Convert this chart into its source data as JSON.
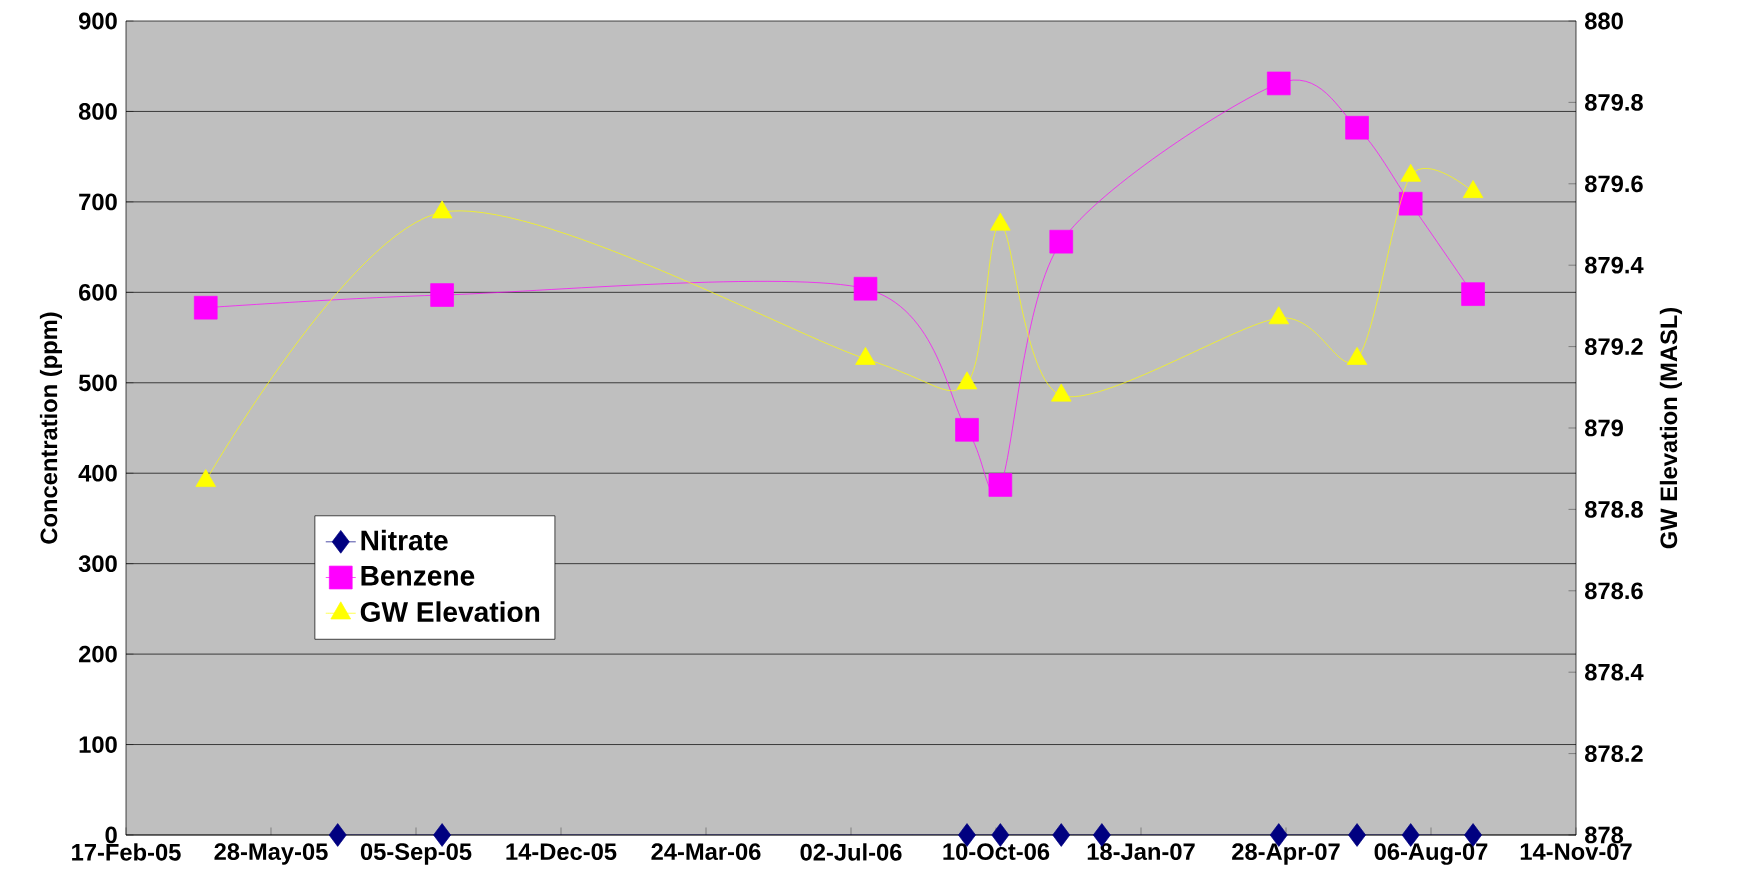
{
  "chart_data": {
    "type": "line",
    "ylabel": "Concentration (ppm)",
    "y2label": "GW Elevation (MASL)",
    "xlim": [
      "2005-02-17",
      "2007-11-14"
    ],
    "xticks": [
      {
        "value": "2005-02-17",
        "label": "17-Feb-05"
      },
      {
        "value": "2005-05-28",
        "label": "28-May-05"
      },
      {
        "value": "2005-09-05",
        "label": "05-Sep-05"
      },
      {
        "value": "2005-12-14",
        "label": "14-Dec-05"
      },
      {
        "value": "2006-03-24",
        "label": "24-Mar-06"
      },
      {
        "value": "2006-07-02",
        "label": "02-Jul-06"
      },
      {
        "value": "2006-10-10",
        "label": "10-Oct-06"
      },
      {
        "value": "2007-01-18",
        "label": "18-Jan-07"
      },
      {
        "value": "2007-04-28",
        "label": "28-Apr-07"
      },
      {
        "value": "2007-08-06",
        "label": "06-Aug-07"
      },
      {
        "value": "2007-11-14",
        "label": "14-Nov-07"
      }
    ],
    "ylim": [
      0,
      900
    ],
    "yticks": [
      0,
      100,
      200,
      300,
      400,
      500,
      600,
      700,
      800,
      900
    ],
    "y2lim": [
      878,
      880
    ],
    "y2ticks": [
      878,
      878.2,
      878.4,
      878.6,
      878.8,
      879,
      879.2,
      879.4,
      879.6,
      879.8,
      880
    ],
    "grid": "y",
    "legend": "left",
    "series": [
      {
        "name": "Nitrate",
        "color": "#000080",
        "marker": "diamond",
        "x": [
          "2005-07-13",
          "2005-09-23",
          "2006-09-20",
          "2006-10-13",
          "2006-11-24",
          "2006-12-22",
          "2007-04-23",
          "2007-06-16",
          "2007-07-23",
          "2007-09-04"
        ],
        "values": [
          0,
          0,
          0,
          0,
          0,
          0,
          0,
          0,
          0,
          0
        ]
      },
      {
        "name": "Benzene",
        "color": "#ff00ff",
        "marker": "square",
        "x": [
          "2005-04-13",
          "2005-09-23",
          "2006-07-12",
          "2006-09-20",
          "2006-10-13",
          "2006-11-24",
          "2007-04-23",
          "2007-06-16",
          "2007-07-23",
          "2007-09-04"
        ],
        "values": [
          583,
          597,
          604,
          448,
          387,
          656,
          831,
          782,
          698,
          598
        ]
      },
      {
        "name": "GW Elevation",
        "color": "#ffff00",
        "marker": "triangle",
        "axis": "y2",
        "x": [
          "2005-04-13",
          "2005-09-23",
          "2006-07-12",
          "2006-09-20",
          "2006-10-13",
          "2006-11-24",
          "2007-04-23",
          "2007-06-16",
          "2007-07-23",
          "2007-09-04"
        ],
        "values": [
          878.87,
          879.53,
          879.17,
          879.11,
          879.5,
          879.08,
          879.27,
          879.17,
          879.62,
          879.58
        ]
      }
    ]
  }
}
